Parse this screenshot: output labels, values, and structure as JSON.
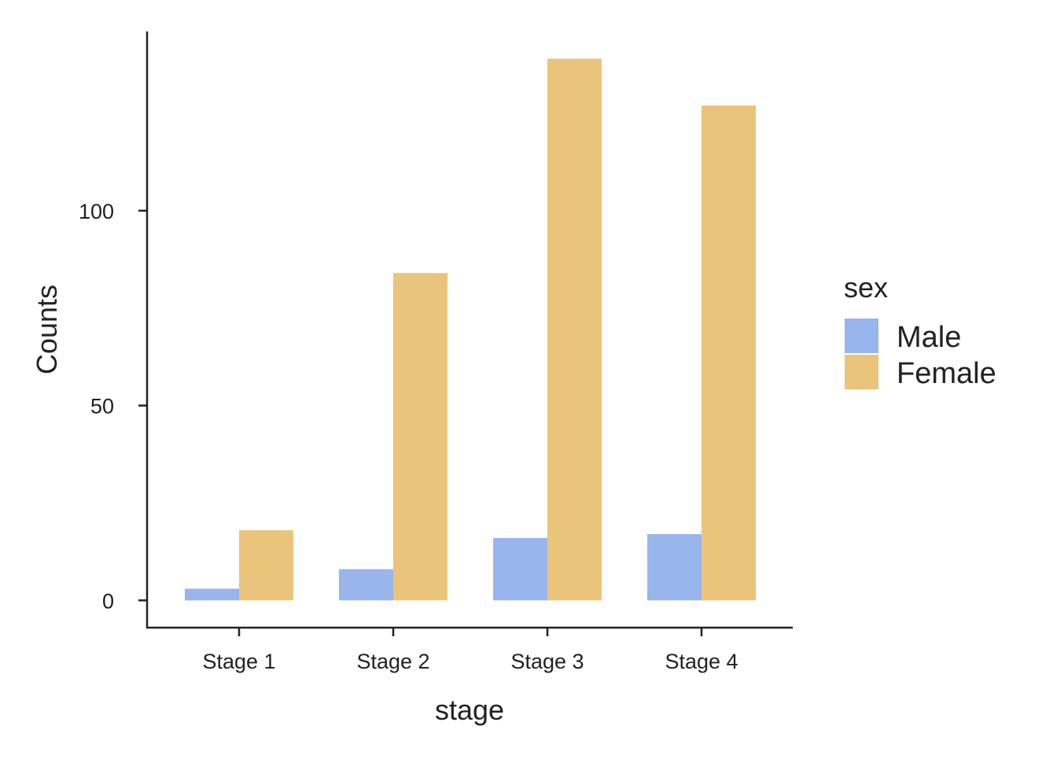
{
  "chart_data": {
    "type": "bar",
    "title": "",
    "xlabel": "stage",
    "ylabel": "Counts",
    "categories": [
      "Stage 1",
      "Stage 2",
      "Stage 3",
      "Stage 4"
    ],
    "series": [
      {
        "name": "Male",
        "values": [
          3,
          8,
          16,
          17
        ],
        "color": "#98B5EC"
      },
      {
        "name": "Female",
        "values": [
          18,
          84,
          139,
          127
        ],
        "color": "#EBC47B"
      }
    ],
    "ylim": [
      -7,
      146
    ],
    "yticks": [
      0,
      50,
      100
    ],
    "grid": false,
    "legend": {
      "title": "sex",
      "position": "right"
    }
  }
}
